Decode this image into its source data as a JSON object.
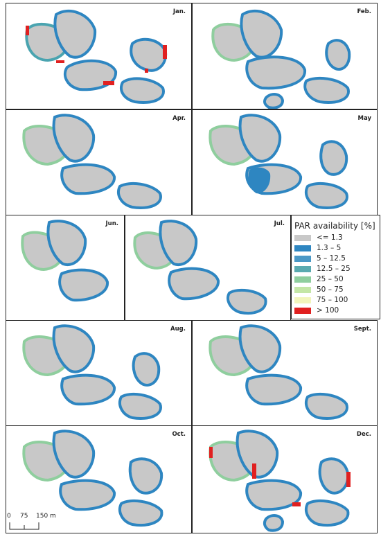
{
  "months": [
    "Jan.",
    "Feb.",
    "Apr.",
    "May",
    "Jun.",
    "Jul.",
    "Aug.",
    "Sept.",
    "Oct.",
    "Dec."
  ],
  "legend": {
    "title": "PAR availability [%]",
    "classes": [
      {
        "label": "<= 1.3",
        "color": "#c8c8c8"
      },
      {
        "label": "1.3 – 5",
        "color": "#2e86c1"
      },
      {
        "label": "5 – 12.5",
        "color": "#4a98c6"
      },
      {
        "label": "12.5 – 25",
        "color": "#5aaab0"
      },
      {
        "label": "25 – 50",
        "color": "#8fce9e"
      },
      {
        "label": "50 – 75",
        "color": "#c4e6a6"
      },
      {
        "label": "75 – 100",
        "color": "#f2f5bc"
      },
      {
        "label": "> 100",
        "color": "#e02020"
      }
    ]
  },
  "scalebar": {
    "zero": "0",
    "mid": "75",
    "end": "150 m"
  }
}
